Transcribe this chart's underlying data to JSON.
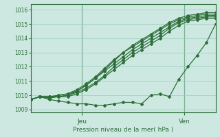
{
  "background_color": "#cce8e0",
  "grid_color": "#99ccbb",
  "line_color": "#2d6e3a",
  "xlabel": "Pression niveau de la mer( hPa )",
  "ylim": [
    1008.8,
    1016.4
  ],
  "xlim": [
    0,
    47
  ],
  "yticks": [
    1009,
    1010,
    1011,
    1012,
    1013,
    1014,
    1015,
    1016
  ],
  "day_labels": [
    [
      "Jeu",
      13
    ],
    [
      "Ven",
      39
    ]
  ],
  "series": [
    [
      1009.7,
      1009.9,
      1009.8,
      1010.0,
      1010.1,
      1010.3,
      1010.7,
      1011.2,
      1011.8,
      1012.4,
      1013.0,
      1013.5,
      1013.9,
      1014.3,
      1014.7,
      1015.1,
      1015.4,
      1015.6,
      1015.7,
      1015.8,
      1015.8
    ],
    [
      1009.7,
      1009.9,
      1009.9,
      1010.0,
      1010.1,
      1010.4,
      1010.8,
      1011.3,
      1011.9,
      1012.5,
      1013.0,
      1013.4,
      1013.8,
      1014.2,
      1014.6,
      1015.0,
      1015.3,
      1015.5,
      1015.6,
      1015.7,
      1015.7
    ],
    [
      1009.7,
      1009.9,
      1009.9,
      1009.9,
      1010.0,
      1010.3,
      1010.7,
      1011.2,
      1011.7,
      1012.2,
      1012.7,
      1013.2,
      1013.6,
      1014.0,
      1014.4,
      1014.8,
      1015.2,
      1015.4,
      1015.5,
      1015.6,
      1015.6
    ],
    [
      1009.7,
      1009.9,
      1009.9,
      1009.9,
      1010.0,
      1010.2,
      1010.5,
      1010.9,
      1011.4,
      1012.0,
      1012.5,
      1013.0,
      1013.4,
      1013.8,
      1014.2,
      1014.7,
      1015.1,
      1015.3,
      1015.4,
      1015.5,
      1015.5
    ],
    [
      1009.7,
      1009.9,
      1009.8,
      1009.9,
      1009.9,
      1010.1,
      1010.4,
      1010.8,
      1011.3,
      1011.8,
      1012.3,
      1012.8,
      1013.2,
      1013.6,
      1014.0,
      1014.5,
      1014.9,
      1015.2,
      1015.3,
      1015.4,
      1015.4
    ],
    [
      1009.7,
      1009.9,
      1009.7,
      1009.6,
      1009.5,
      1009.4,
      1009.4,
      1009.3,
      1009.3,
      1009.4,
      1009.5,
      1009.5,
      1009.4,
      1010.0,
      1010.1,
      1009.9,
      1011.1,
      1012.0,
      1012.8,
      1013.7,
      1015.0
    ]
  ],
  "marker": "D",
  "marker_size": 2.0,
  "line_width": 0.9
}
